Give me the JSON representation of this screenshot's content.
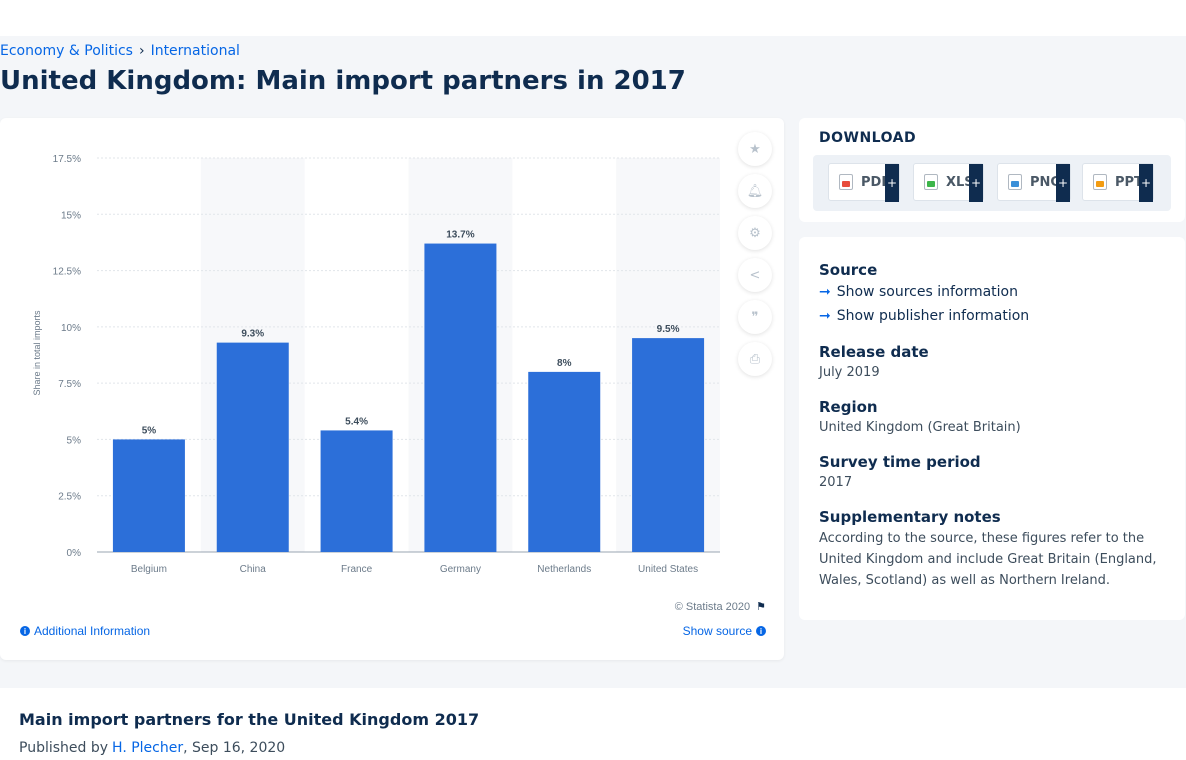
{
  "breadcrumb": {
    "items": [
      "Economy & Politics",
      "International"
    ],
    "separator": "›"
  },
  "page": {
    "title": "United Kingdom: Main import partners in 2017"
  },
  "chart_data": {
    "type": "bar",
    "title": "",
    "xlabel": "",
    "ylabel": "Share in total imports",
    "categories": [
      "Belgium",
      "China",
      "France",
      "Germany",
      "Netherlands",
      "United States"
    ],
    "values": [
      5,
      9.3,
      5.4,
      13.7,
      8,
      9.5
    ],
    "data_labels": [
      "5%",
      "9.3%",
      "5.4%",
      "13.7%",
      "8%",
      "9.5%"
    ],
    "yticks": [
      "0%",
      "2.5%",
      "5%",
      "7.5%",
      "10%",
      "12.5%",
      "15%",
      "17.5%"
    ],
    "ylim": [
      0,
      17.5
    ],
    "grid": true,
    "bar_color": "#2c6fd9"
  },
  "chart_footer": {
    "copyright": "© Statista 2020",
    "additional_info": "Additional Information",
    "show_source": "Show source"
  },
  "actions": [
    "star-icon",
    "bell-icon",
    "gear-icon",
    "share-icon",
    "quote-icon",
    "print-icon"
  ],
  "download": {
    "title": "DOWNLOAD",
    "buttons": [
      {
        "label": "PDF",
        "plus": "+"
      },
      {
        "label": "XLS",
        "plus": "+"
      },
      {
        "label": "PNG",
        "plus": "+"
      },
      {
        "label": "PPT",
        "plus": "+"
      }
    ]
  },
  "info": {
    "source_label": "Source",
    "show_sources": "Show sources information",
    "show_publisher": "Show publisher information",
    "release_label": "Release date",
    "release_value": "July 2019",
    "region_label": "Region",
    "region_value": "United Kingdom (Great Britain)",
    "survey_label": "Survey time period",
    "survey_value": "2017",
    "notes_label": "Supplementary notes",
    "notes_value": "According to the source, these figures refer to the United Kingdom and include Great Britain (England, Wales, Scotland) as well as Northern Ireland."
  },
  "footer": {
    "title": "Main import partners for the United Kingdom 2017",
    "published_by": "Published by",
    "author": "H. Plecher",
    "date": ", Sep 16, 2020"
  },
  "colors": {
    "accent": "#0666e5",
    "navy": "#0f2c4f",
    "bar": "#2c6fd9"
  }
}
